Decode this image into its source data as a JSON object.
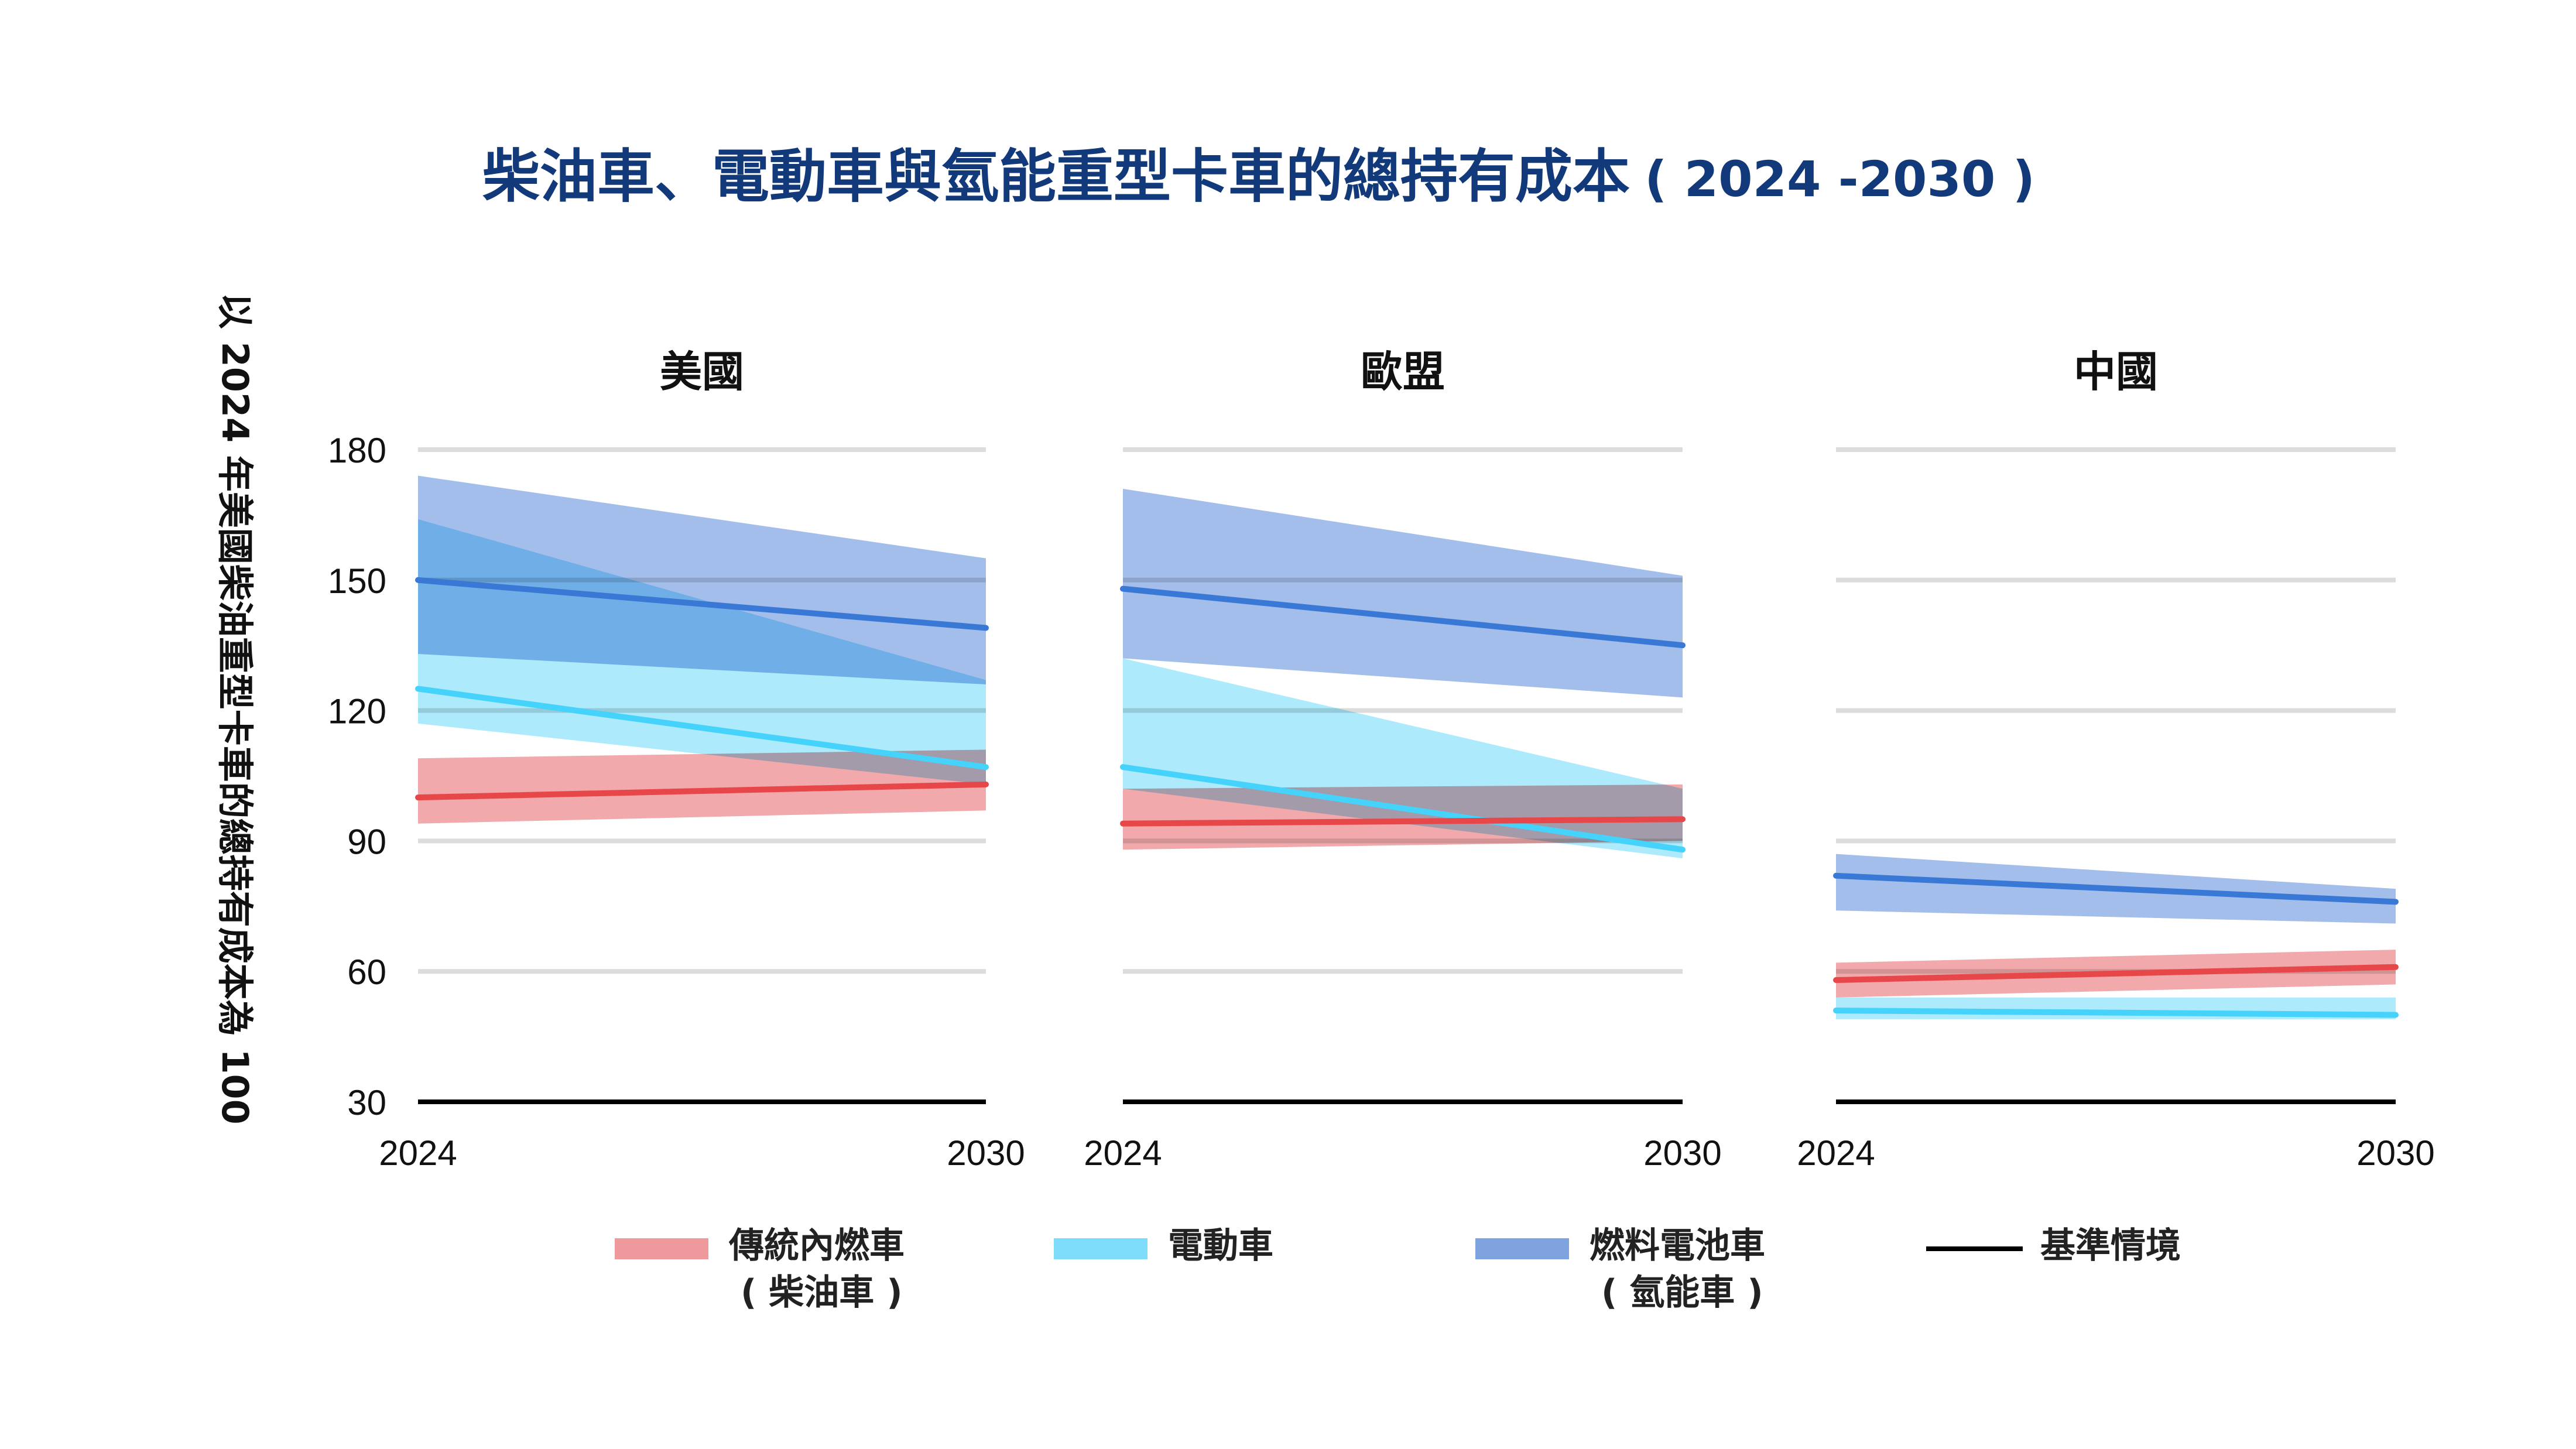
{
  "chart_data": {
    "type": "area",
    "title": "柴油車、電動車與氫能重型卡車的總持有成本",
    "title_suffix": "( 2024 -2030 )",
    "ylabel": "以 2024 年美國柴油重型卡車的總持有成本為 100",
    "yticks": [
      180,
      150,
      120,
      90,
      60,
      30
    ],
    "ylim": [
      30,
      180
    ],
    "xticks": [
      "2024",
      "2030"
    ],
    "grid": true,
    "legend_position": "bottom",
    "colors": {
      "diesel": "#e8474a",
      "ev": "#45d2fb",
      "fc": "#3a78d6",
      "baseline": "#000000",
      "diesel_band": "#ee9a9c",
      "ev_band": "#9fe6fc",
      "fc_band": "#93b3e6"
    },
    "legend": [
      {
        "key": "diesel",
        "label": "傳統內燃車",
        "label2": "( 柴油車 )"
      },
      {
        "key": "ev",
        "label": "電動車",
        "label2": ""
      },
      {
        "key": "fc",
        "label": "燃料電池車",
        "label2": "( 氫能車 )"
      },
      {
        "key": "baseline",
        "label": "基準情境",
        "label2": ""
      }
    ],
    "panels": [
      {
        "title": "美國",
        "x": [
          2024,
          2030
        ],
        "baseline": [
          30,
          30
        ],
        "series": {
          "fc": {
            "mid": [
              150,
              139
            ],
            "high": [
              174,
              155
            ],
            "low": [
              133,
              126
            ]
          },
          "ev": {
            "mid": [
              125,
              107
            ],
            "high": [
              164,
              127
            ],
            "low": [
              117,
              103
            ]
          },
          "diesel": {
            "mid": [
              100,
              103
            ],
            "high": [
              109,
              111
            ],
            "low": [
              94,
              97
            ]
          }
        }
      },
      {
        "title": "歐盟",
        "x": [
          2024,
          2030
        ],
        "baseline": [
          30,
          30
        ],
        "series": {
          "fc": {
            "mid": [
              148,
              135
            ],
            "high": [
              171,
              151
            ],
            "low": [
              132,
              123
            ]
          },
          "ev": {
            "mid": [
              107,
              88
            ],
            "high": [
              132,
              102
            ],
            "low": [
              102,
              86
            ]
          },
          "diesel": {
            "mid": [
              94,
              95
            ],
            "high": [
              102,
              103
            ],
            "low": [
              88,
              90
            ]
          }
        }
      },
      {
        "title": "中國",
        "x": [
          2024,
          2030
        ],
        "baseline": [
          30,
          30
        ],
        "series": {
          "fc": {
            "mid": [
              82,
              76
            ],
            "high": [
              87,
              79
            ],
            "low": [
              74,
              71
            ]
          },
          "ev": {
            "mid": [
              51,
              50
            ],
            "high": [
              54,
              54
            ],
            "low": [
              49,
              49
            ]
          },
          "diesel": {
            "mid": [
              58,
              61
            ],
            "high": [
              62,
              65
            ],
            "low": [
              54,
              57
            ]
          }
        }
      }
    ]
  }
}
